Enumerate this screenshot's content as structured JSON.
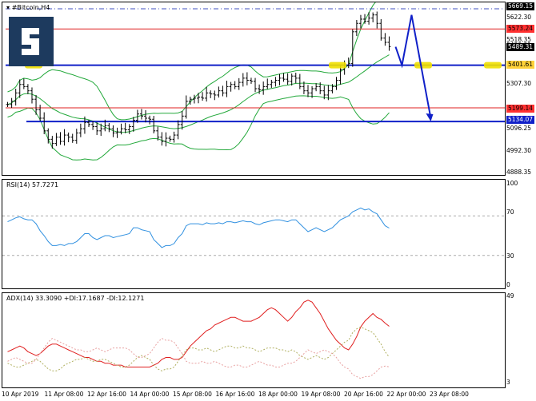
{
  "chart": {
    "symbol_label": "#Bitcoin,H4",
    "rsi_label": "RSI(14) 57.7271",
    "adx_label": "ADX(14) 33.3090 +DI:17.1687 -DI:12.1271"
  },
  "price_axis": [
    "5669.15",
    "5622.30",
    "5573.24",
    "5518.35",
    "5489.31",
    "5401.61",
    "5307.30",
    "5134.07",
    "5096.25",
    "4992.30",
    "4888.35"
  ],
  "price_tags": {
    "top": "5669.15",
    "res": "5573.24",
    "cur": "5489.31",
    "sup": "5401.61",
    "mid": "5199.14",
    "low": "5134.07"
  },
  "rsi_axis": [
    "100",
    "70",
    "30",
    "0"
  ],
  "adx_axis": [
    "49",
    "3"
  ],
  "x_axis": [
    "10 Apr 2019",
    "11 Apr 08:00",
    "12 Apr 16:00",
    "14 Apr 00:00",
    "15 Apr 08:00",
    "16 Apr 16:00",
    "18 Apr 00:00",
    "19 Apr 08:00",
    "20 Apr 16:00",
    "22 Apr 00:00",
    "23 Apr 08:00"
  ],
  "colors": {
    "candle": "#000000",
    "bollinger": "#22a83a",
    "resistance": "#e02020",
    "support": "#1020c8",
    "highlight": "#f0e000",
    "rsi": "#3090e0",
    "adx": "#e02020",
    "di_plus": "#b0b060",
    "di_minus": "#e8a0a0"
  },
  "chart_data": [
    {
      "type": "candlestick",
      "title": "#Bitcoin,H4",
      "ylim": [
        4888.35,
        5669.15
      ],
      "close": [
        5215,
        5230,
        5270,
        5310,
        5300,
        5280,
        5240,
        5190,
        5150,
        5090,
        5050,
        5030,
        5060,
        5040,
        5070,
        5060,
        5045,
        5080,
        5100,
        5130,
        5120,
        5110,
        5090,
        5100,
        5115,
        5100,
        5080,
        5085,
        5100,
        5095,
        5110,
        5140,
        5170,
        5160,
        5150,
        5145,
        5090,
        5060,
        5040,
        5055,
        5050,
        5070,
        5120,
        5160,
        5230,
        5240,
        5245,
        5250,
        5245,
        5270,
        5265,
        5260,
        5280,
        5270,
        5300,
        5310,
        5300,
        5320,
        5340,
        5330,
        5325,
        5290,
        5285,
        5300,
        5310,
        5320,
        5330,
        5340,
        5335,
        5325,
        5350,
        5340,
        5300,
        5280,
        5270,
        5290,
        5300,
        5280,
        5260,
        5280,
        5300,
        5330,
        5380,
        5400,
        5410,
        5560,
        5600,
        5620,
        5610,
        5625,
        5640,
        5600,
        5530,
        5510,
        5490
      ],
      "lines": {
        "resistance": 5573.24,
        "support_upper": 5401.61,
        "resistance_lower": 5199.14,
        "support_lower": 5134.07
      }
    },
    {
      "type": "line",
      "title": "RSI(14) 57.7271",
      "ylim": [
        0,
        100
      ],
      "levels": [
        70,
        30
      ],
      "values": [
        64,
        66,
        68,
        69,
        67,
        66,
        66,
        62,
        55,
        50,
        44,
        40,
        40,
        41,
        40,
        42,
        42,
        44,
        48,
        52,
        52,
        48,
        46,
        48,
        50,
        50,
        48,
        49,
        50,
        51,
        52,
        58,
        58,
        56,
        55,
        54,
        46,
        42,
        38,
        40,
        40,
        42,
        48,
        52,
        60,
        62,
        62,
        62,
        61,
        63,
        62,
        62,
        63,
        62,
        64,
        64,
        63,
        64,
        65,
        64,
        64,
        62,
        61,
        63,
        64,
        65,
        66,
        66,
        65,
        64,
        66,
        66,
        62,
        58,
        54,
        56,
        58,
        56,
        54,
        56,
        58,
        62,
        66,
        68,
        70,
        74,
        76,
        78,
        76,
        77,
        74,
        72,
        66,
        60,
        57.7
      ]
    },
    {
      "type": "line",
      "title": "ADX(14) 33.3090 +DI:17.1687 -DI:12.1271",
      "ylim": [
        3,
        49
      ],
      "series": [
        {
          "name": "ADX",
          "values": [
            20,
            21,
            22,
            23,
            22,
            20,
            19,
            18,
            19,
            21,
            23,
            24,
            24,
            23,
            22,
            21,
            20,
            19,
            18,
            17,
            17,
            16,
            15,
            15,
            14,
            14,
            13,
            13,
            13,
            12,
            12,
            12,
            12,
            12,
            12,
            12,
            13,
            14,
            16,
            17,
            17,
            16,
            16,
            17,
            20,
            23,
            25,
            27,
            29,
            31,
            32,
            34,
            35,
            36,
            37,
            38,
            38,
            37,
            36,
            36,
            36,
            37,
            38,
            40,
            42,
            43,
            42,
            40,
            38,
            36,
            38,
            41,
            43,
            46,
            47,
            46,
            43,
            40,
            36,
            32,
            29,
            26,
            24,
            22,
            21,
            24,
            28,
            33,
            36,
            38,
            40,
            38,
            37,
            35,
            33.3
          ]
        },
        {
          "name": "+DI",
          "values": [
            14,
            13,
            12,
            12,
            13,
            14,
            15,
            16,
            15,
            13,
            11,
            10,
            10,
            11,
            13,
            14,
            15,
            16,
            16,
            17,
            16,
            15,
            15,
            16,
            16,
            15,
            14,
            13,
            12,
            12,
            13,
            15,
            17,
            18,
            17,
            16,
            13,
            11,
            10,
            11,
            11,
            12,
            15,
            18,
            21,
            22,
            22,
            21,
            21,
            22,
            21,
            20,
            21,
            22,
            23,
            23,
            22,
            22,
            23,
            22,
            22,
            21,
            20,
            21,
            22,
            22,
            22,
            21,
            21,
            20,
            21,
            20,
            18,
            17,
            16,
            17,
            18,
            17,
            16,
            17,
            19,
            21,
            23,
            25,
            26,
            30,
            32,
            33,
            32,
            31,
            30,
            27,
            24,
            20,
            17.2
          ]
        },
        {
          "name": "-DI",
          "values": [
            15,
            16,
            17,
            16,
            15,
            14,
            14,
            16,
            19,
            22,
            25,
            27,
            26,
            25,
            24,
            23,
            22,
            21,
            21,
            20,
            20,
            21,
            22,
            21,
            20,
            21,
            22,
            22,
            22,
            22,
            21,
            19,
            17,
            17,
            18,
            19,
            22,
            25,
            27,
            26,
            26,
            25,
            22,
            19,
            15,
            14,
            14,
            14,
            15,
            14,
            14,
            15,
            14,
            13,
            12,
            12,
            13,
            13,
            12,
            12,
            13,
            14,
            15,
            14,
            13,
            13,
            12,
            12,
            13,
            14,
            14,
            15,
            17,
            19,
            21,
            20,
            19,
            20,
            21,
            20,
            19,
            17,
            14,
            12,
            11,
            8,
            7,
            6,
            7,
            7,
            8,
            10,
            12,
            12.5,
            12.1
          ]
        }
      ]
    }
  ]
}
